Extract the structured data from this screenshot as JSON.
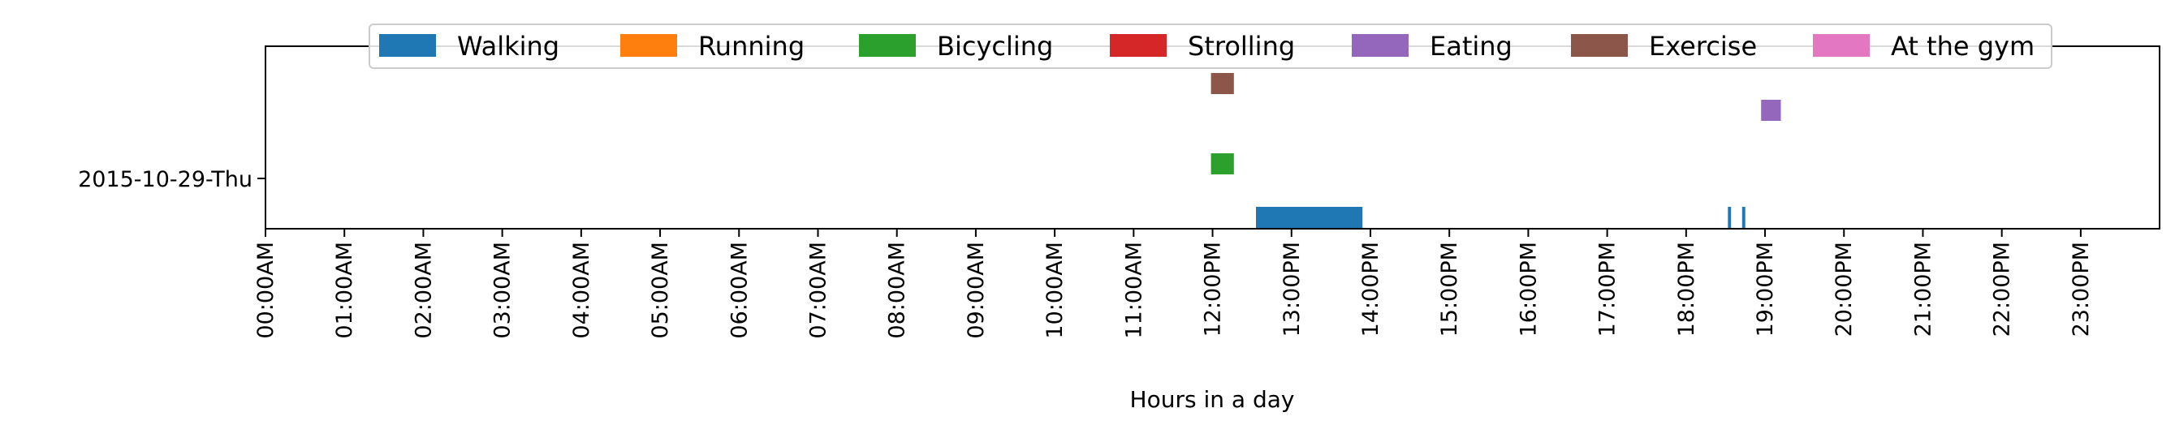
{
  "chart_data": {
    "type": "timeline",
    "title": "",
    "xlabel": "Hours in a day",
    "ylabel": "",
    "xlim_hours": [
      0,
      23.999
    ],
    "y_categories": [
      "2015-10-29-Thu"
    ],
    "x_ticks": [
      "00:00AM",
      "01:00AM",
      "02:00AM",
      "03:00AM",
      "04:00AM",
      "05:00AM",
      "06:00AM",
      "07:00AM",
      "08:00AM",
      "09:00AM",
      "10:00AM",
      "11:00AM",
      "12:00PM",
      "13:00PM",
      "14:00PM",
      "15:00PM",
      "16:00PM",
      "17:00PM",
      "18:00PM",
      "19:00PM",
      "20:00PM",
      "21:00PM",
      "22:00PM",
      "23:00PM"
    ],
    "legend_position": "top-center",
    "grid": false,
    "series": [
      {
        "name": "Walking",
        "color": "#1f77b4",
        "row": 0,
        "segments": [
          [
            12.55,
            13.9
          ],
          [
            18.53,
            18.57
          ],
          [
            18.71,
            18.75
          ]
        ]
      },
      {
        "name": "Running",
        "color": "#ff7f0e",
        "row": 1,
        "segments": []
      },
      {
        "name": "Bicycling",
        "color": "#2ca02c",
        "row": 2,
        "segments": [
          [
            11.98,
            12.27
          ]
        ]
      },
      {
        "name": "Strolling",
        "color": "#d62728",
        "row": 3,
        "segments": []
      },
      {
        "name": "Eating",
        "color": "#9467bd",
        "row": 4,
        "segments": [
          [
            18.95,
            19.2
          ]
        ]
      },
      {
        "name": "Exercise",
        "color": "#8c564b",
        "row": 5,
        "segments": [
          [
            11.98,
            12.27
          ]
        ]
      },
      {
        "name": "At the gym",
        "color": "#e377c2",
        "row": 6,
        "segments": []
      }
    ]
  }
}
